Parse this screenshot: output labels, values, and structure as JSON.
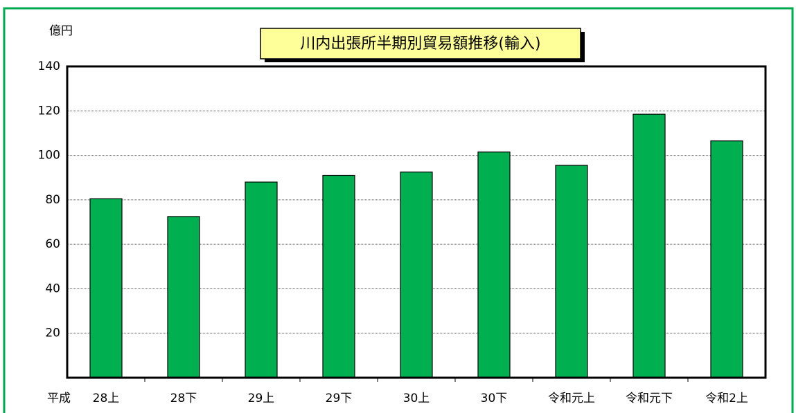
{
  "chart_data": {
    "type": "bar",
    "title": "川内出張所半期別貿易額推移(輸入)",
    "y_label": "億円",
    "x_annotation": "平成",
    "categories": [
      "28上",
      "28下",
      "29上",
      "29下",
      "30上",
      "30下",
      "令和元上",
      "令和元下",
      "令和2上"
    ],
    "values": [
      80.5,
      72.5,
      88,
      91,
      92.5,
      101.5,
      95.5,
      118.5,
      106.5
    ],
    "color": "#00b050",
    "ylim": [
      0,
      140
    ],
    "yticks": [
      20,
      40,
      60,
      80,
      100,
      120,
      140
    ],
    "grid": true
  }
}
